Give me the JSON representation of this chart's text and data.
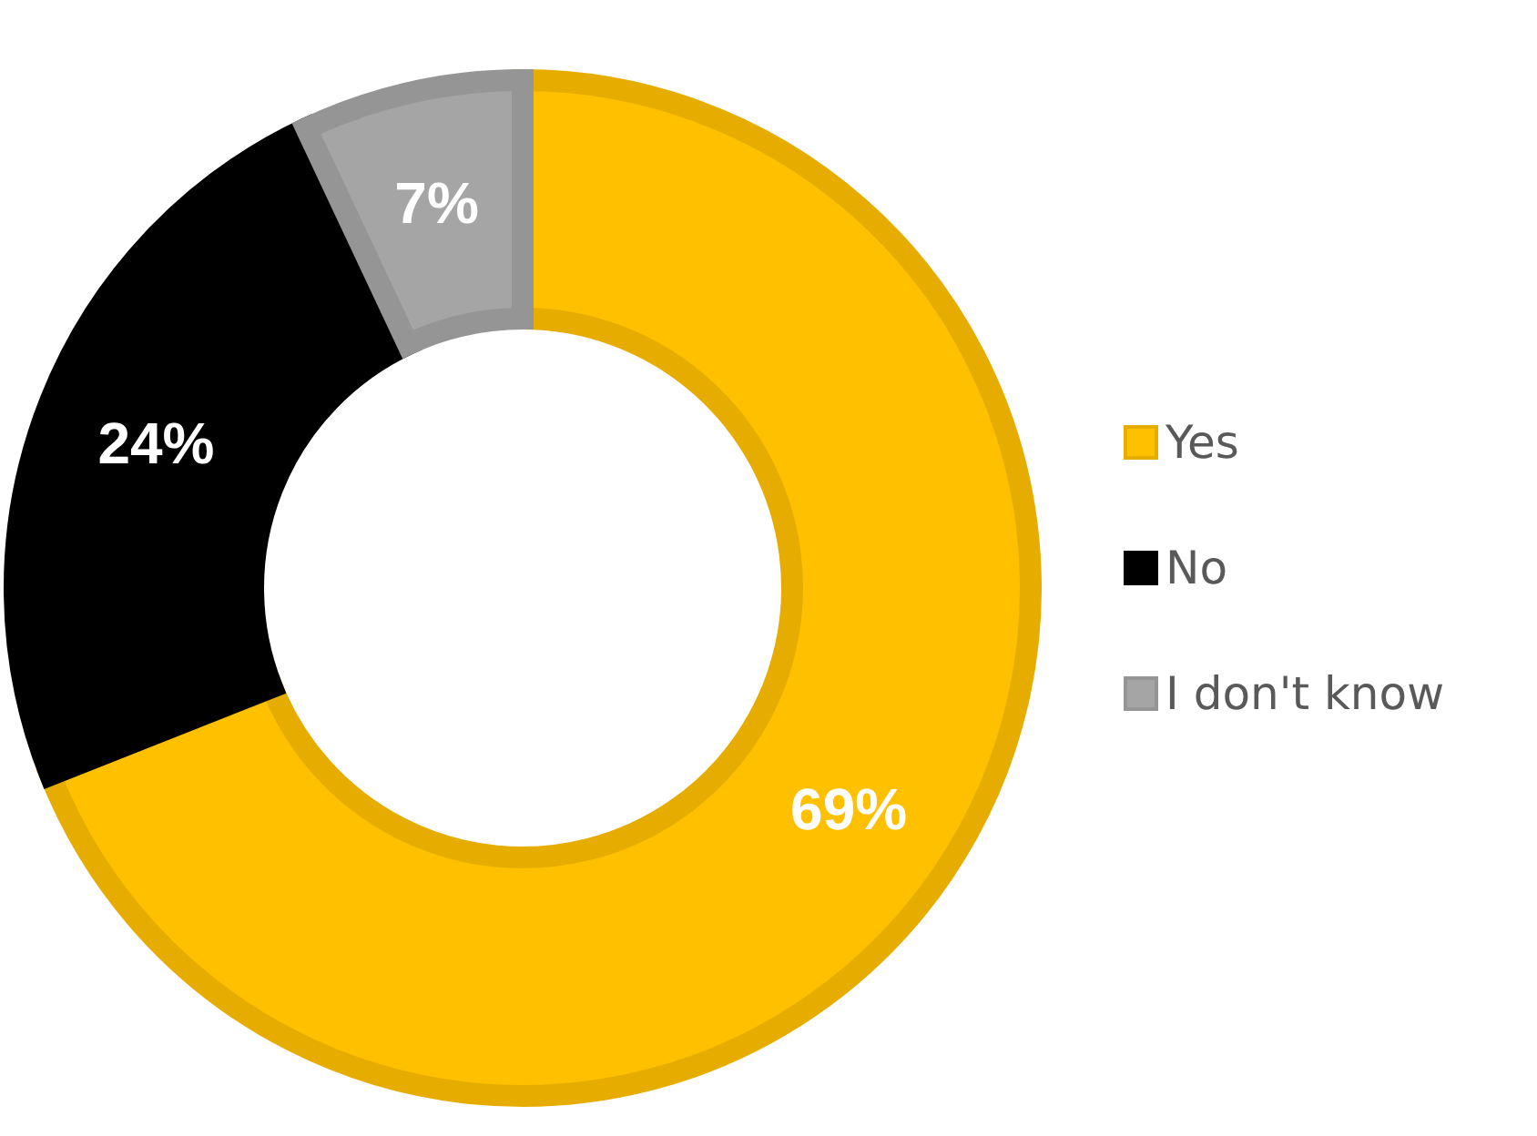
{
  "chart_data": {
    "type": "donut",
    "categories": [
      "Yes",
      "No",
      "I don't know"
    ],
    "values": [
      69,
      24,
      7
    ],
    "colors": [
      "#ffc000",
      "#000000",
      "#a5a5a5"
    ],
    "value_labels": [
      "69%",
      "24%",
      "7%"
    ],
    "legend": "right"
  }
}
